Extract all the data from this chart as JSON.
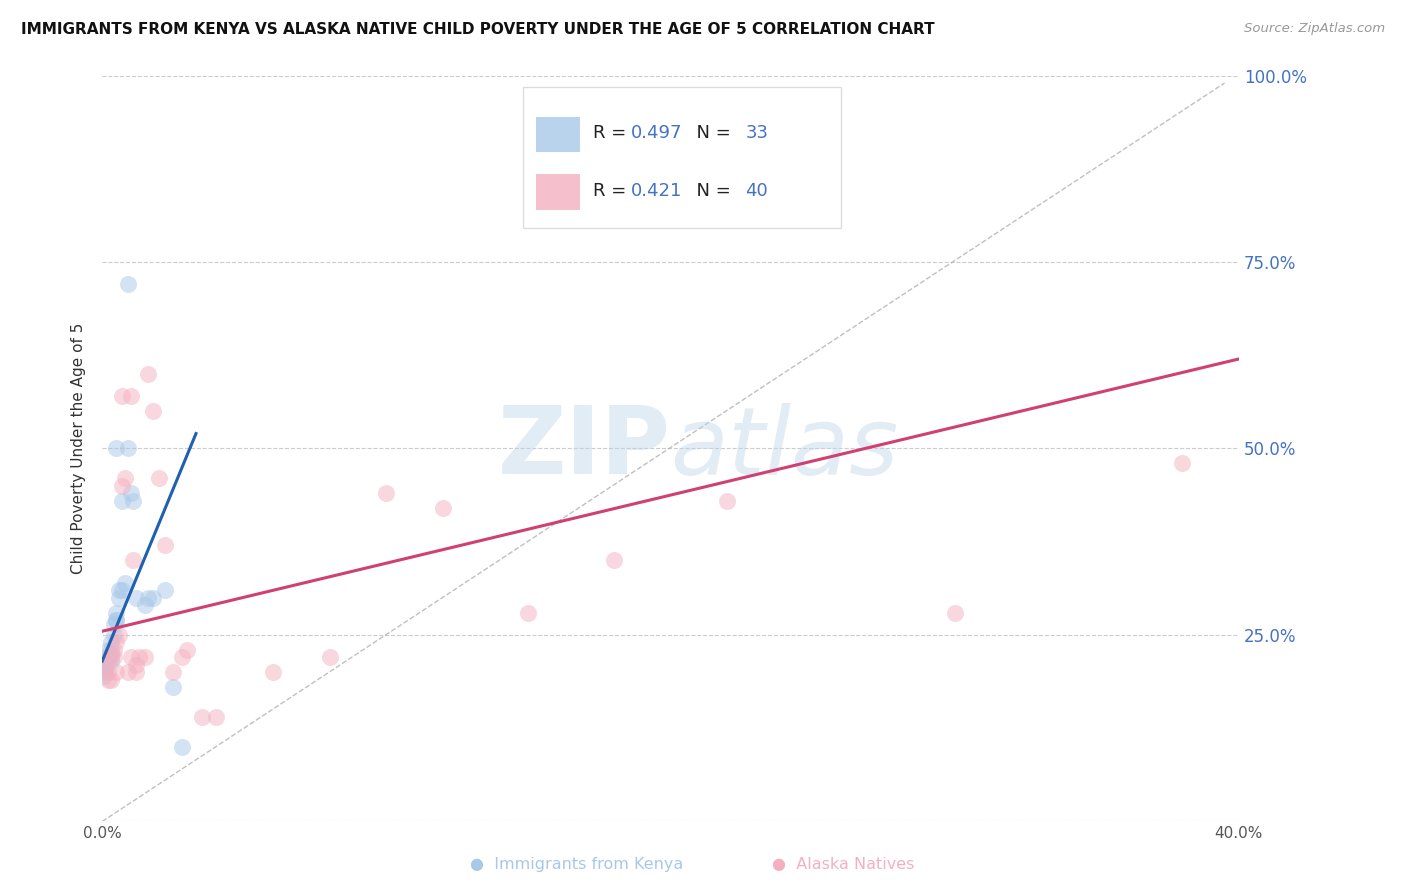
{
  "title": "IMMIGRANTS FROM KENYA VS ALASKA NATIVE CHILD POVERTY UNDER THE AGE OF 5 CORRELATION CHART",
  "source": "Source: ZipAtlas.com",
  "ylabel": "Child Poverty Under the Age of 5",
  "xlim": [
    0.0,
    0.4
  ],
  "ylim": [
    0.0,
    1.0
  ],
  "xticks": [
    0.0,
    0.05,
    0.1,
    0.15,
    0.2,
    0.25,
    0.3,
    0.35,
    0.4
  ],
  "xticklabels": [
    "0.0%",
    "",
    "",
    "",
    "",
    "",
    "",
    "",
    "40.0%"
  ],
  "yticks_right": [
    0.0,
    0.25,
    0.5,
    0.75,
    1.0
  ],
  "ytick_right_labels": [
    "",
    "25.0%",
    "50.0%",
    "75.0%",
    "100.0%"
  ],
  "blue_fill": "#a8c8e8",
  "pink_fill": "#f4b0c0",
  "blue_line_color": "#2060b0",
  "pink_line_color": "#d04070",
  "diag_color": "#b0b0b0",
  "right_axis_color": "#4472c4",
  "grid_color": "#cccccc",
  "blue_R": 0.497,
  "blue_N": 33,
  "pink_R": 0.421,
  "pink_N": 40,
  "watermark_zip": "ZIP",
  "watermark_atlas": "atlas",
  "blue_scatter_x": [
    0.0005,
    0.001,
    0.001,
    0.001,
    0.002,
    0.002,
    0.002,
    0.003,
    0.003,
    0.003,
    0.003,
    0.004,
    0.004,
    0.005,
    0.005,
    0.005,
    0.005,
    0.006,
    0.006,
    0.007,
    0.007,
    0.008,
    0.009,
    0.009,
    0.01,
    0.011,
    0.012,
    0.015,
    0.016,
    0.018,
    0.022,
    0.025,
    0.028
  ],
  "blue_scatter_y": [
    0.195,
    0.2,
    0.205,
    0.21,
    0.215,
    0.22,
    0.23,
    0.215,
    0.225,
    0.23,
    0.24,
    0.25,
    0.265,
    0.27,
    0.27,
    0.28,
    0.5,
    0.3,
    0.31,
    0.31,
    0.43,
    0.32,
    0.72,
    0.5,
    0.44,
    0.43,
    0.3,
    0.29,
    0.3,
    0.3,
    0.31,
    0.18,
    0.1
  ],
  "pink_scatter_x": [
    0.001,
    0.001,
    0.002,
    0.002,
    0.003,
    0.003,
    0.004,
    0.004,
    0.005,
    0.005,
    0.006,
    0.007,
    0.007,
    0.008,
    0.009,
    0.01,
    0.01,
    0.011,
    0.012,
    0.012,
    0.013,
    0.015,
    0.016,
    0.018,
    0.02,
    0.022,
    0.025,
    0.028,
    0.03,
    0.035,
    0.04,
    0.06,
    0.08,
    0.1,
    0.12,
    0.15,
    0.18,
    0.22,
    0.3,
    0.38
  ],
  "pink_scatter_y": [
    0.21,
    0.22,
    0.2,
    0.19,
    0.19,
    0.22,
    0.22,
    0.23,
    0.2,
    0.24,
    0.25,
    0.57,
    0.45,
    0.46,
    0.2,
    0.57,
    0.22,
    0.35,
    0.2,
    0.21,
    0.22,
    0.22,
    0.6,
    0.55,
    0.46,
    0.37,
    0.2,
    0.22,
    0.23,
    0.14,
    0.14,
    0.2,
    0.22,
    0.44,
    0.42,
    0.28,
    0.35,
    0.43,
    0.28,
    0.48
  ],
  "blue_line_x": [
    0.0,
    0.033
  ],
  "blue_line_y": [
    0.215,
    0.52
  ],
  "pink_line_x": [
    0.0,
    0.4
  ],
  "pink_line_y": [
    0.255,
    0.62
  ],
  "diag_line_x": [
    0.0,
    0.395
  ],
  "diag_line_y": [
    0.0,
    0.99
  ]
}
